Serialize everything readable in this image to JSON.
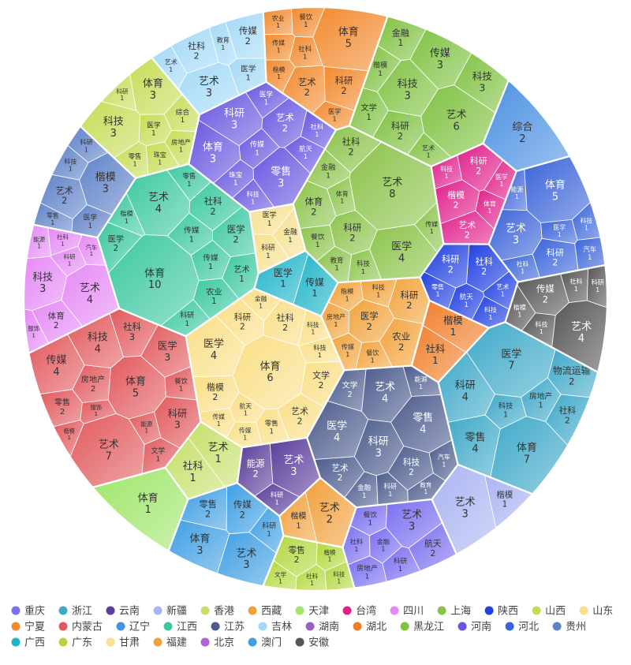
{
  "chart_data": {
    "type": "voronoi_treemap",
    "groups": [
      {
        "name": "重庆",
        "color": "#7a6ff0",
        "children": [
          {
            "name": "餐饮",
            "value": 1
          },
          {
            "name": "科研",
            "value": 1
          },
          {
            "name": "房地产",
            "value": 1
          },
          {
            "name": "航天",
            "value": 2
          },
          {
            "name": "金融",
            "value": 1
          },
          {
            "name": "艺术",
            "value": 3
          },
          {
            "name": "社科",
            "value": 1
          }
        ]
      },
      {
        "name": "浙江",
        "color": "#3fa9c9",
        "children": [
          {
            "name": "体育",
            "value": 7
          },
          {
            "name": "房地产",
            "value": 1
          },
          {
            "name": "科研",
            "value": 4
          },
          {
            "name": "科技",
            "value": 1
          },
          {
            "name": "物流运输",
            "value": 2
          },
          {
            "name": "社科",
            "value": 2
          },
          {
            "name": "零售",
            "value": 4
          },
          {
            "name": "医学",
            "value": 7
          }
        ]
      },
      {
        "name": "云南",
        "color": "#5a3d9a",
        "children": [
          {
            "name": "艺术",
            "value": 3
          },
          {
            "name": "科研",
            "value": 1
          },
          {
            "name": "能源",
            "value": 2
          }
        ]
      },
      {
        "name": "新疆",
        "color": "#aab4f2",
        "children": [
          {
            "name": "艺术",
            "value": 3
          },
          {
            "name": "楷模",
            "value": 1
          }
        ]
      },
      {
        "name": "香港",
        "color": "#c6e06b",
        "children": [
          {
            "name": "社科",
            "value": 1
          },
          {
            "name": "艺术",
            "value": 1
          }
        ]
      },
      {
        "name": "西藏",
        "color": "#f2a03c",
        "children": [
          {
            "name": "艺术",
            "value": 2
          },
          {
            "name": "楷模",
            "value": 1
          }
        ]
      },
      {
        "name": "天津",
        "color": "#9fe66a",
        "children": [
          {
            "name": "体育",
            "value": 1
          }
        ]
      },
      {
        "name": "台湾",
        "color": "#e0208c",
        "children": [
          {
            "name": "科研",
            "value": 2
          },
          {
            "name": "艺术",
            "value": 2
          },
          {
            "name": "体育",
            "value": 1
          },
          {
            "name": "医学",
            "value": 1
          },
          {
            "name": "楷模",
            "value": 2
          },
          {
            "name": "科技",
            "value": 1
          }
        ]
      },
      {
        "name": "四川",
        "color": "#e58af5",
        "children": [
          {
            "name": "汽车",
            "value": 1
          },
          {
            "name": "体育",
            "value": 2
          },
          {
            "name": "科研",
            "value": 1
          },
          {
            "name": "服饰",
            "value": 1
          },
          {
            "name": "能源",
            "value": 1
          },
          {
            "name": "科技",
            "value": 3
          },
          {
            "name": "艺术",
            "value": 4
          },
          {
            "name": "社科",
            "value": 1
          }
        ]
      },
      {
        "name": "上海",
        "color": "#8bc34a",
        "children": [
          {
            "name": "体育",
            "value": 1
          },
          {
            "name": "艺术",
            "value": 8
          },
          {
            "name": "医学",
            "value": 4
          },
          {
            "name": "教育",
            "value": 1
          },
          {
            "name": "金融",
            "value": 1
          },
          {
            "name": "社科",
            "value": 2
          },
          {
            "name": "科技",
            "value": 1
          },
          {
            "name": "餐饮",
            "value": 1
          },
          {
            "name": "传媒",
            "value": 1
          },
          {
            "name": "体育",
            "value": 2
          },
          {
            "name": "科研",
            "value": 2
          }
        ]
      },
      {
        "name": "陕西",
        "color": "#1f3fe0",
        "children": [
          {
            "name": "航天",
            "value": 1
          },
          {
            "name": "社科",
            "value": 2
          },
          {
            "name": "科技",
            "value": 1
          },
          {
            "name": "艺术",
            "value": 1
          },
          {
            "name": "科研",
            "value": 2
          },
          {
            "name": "零售",
            "value": 1
          }
        ]
      },
      {
        "name": "山西",
        "color": "#c5dd55",
        "children": [
          {
            "name": "体育",
            "value": 3
          },
          {
            "name": "零售",
            "value": 1
          },
          {
            "name": "综合",
            "value": 1
          },
          {
            "name": "医学",
            "value": 1
          },
          {
            "name": "房地产",
            "value": 1
          },
          {
            "name": "科研",
            "value": 1
          },
          {
            "name": "科技",
            "value": 3
          },
          {
            "name": "珠宝",
            "value": 1
          }
        ]
      },
      {
        "name": "山东",
        "color": "#fadf86",
        "children": [
          {
            "name": "文学",
            "value": 2
          },
          {
            "name": "医学",
            "value": 4
          },
          {
            "name": "科研",
            "value": 2
          },
          {
            "name": "金融",
            "value": 1
          },
          {
            "name": "零售",
            "value": 1
          },
          {
            "name": "传媒",
            "value": 1
          },
          {
            "name": "科技",
            "value": 1
          },
          {
            "name": "传媒",
            "value": 1
          },
          {
            "name": "艺术",
            "value": 2
          },
          {
            "name": "体育",
            "value": 6
          },
          {
            "name": "航天",
            "value": 1
          },
          {
            "name": "科技",
            "value": 1
          },
          {
            "name": "社科",
            "value": 2
          },
          {
            "name": "楷模",
            "value": 2
          }
        ]
      },
      {
        "name": "宁夏",
        "color": "#f28a2e",
        "children": [
          {
            "name": "医学",
            "value": 1
          },
          {
            "name": "楷模",
            "value": 1
          },
          {
            "name": "科研",
            "value": 2
          },
          {
            "name": "社科",
            "value": 1
          },
          {
            "name": "餐饮",
            "value": 1
          },
          {
            "name": "农业",
            "value": 1
          },
          {
            "name": "艺术",
            "value": 2
          },
          {
            "name": "体育",
            "value": 5
          },
          {
            "name": "传媒",
            "value": 1
          }
        ]
      },
      {
        "name": "内蒙古",
        "color": "#e2595d",
        "children": [
          {
            "name": "文学",
            "value": 1
          },
          {
            "name": "艺术",
            "value": 7
          },
          {
            "name": "房地产",
            "value": 2
          },
          {
            "name": "传媒",
            "value": 4
          },
          {
            "name": "服饰",
            "value": 1
          },
          {
            "name": "楷模",
            "value": 1
          },
          {
            "name": "社科",
            "value": 3
          },
          {
            "name": "科研",
            "value": 3
          },
          {
            "name": "能源",
            "value": 1
          },
          {
            "name": "体育",
            "value": 5
          },
          {
            "name": "医学",
            "value": 3
          },
          {
            "name": "零售",
            "value": 2
          },
          {
            "name": "科技",
            "value": 4
          },
          {
            "name": "餐饮",
            "value": 1
          }
        ]
      },
      {
        "name": "辽宁",
        "color": "#4a90e2",
        "children": [
          {
            "name": "综合",
            "value": 2
          }
        ]
      },
      {
        "name": "江西",
        "color": "#3cc8a0",
        "children": [
          {
            "name": "体育",
            "value": 10
          },
          {
            "name": "社科",
            "value": 2
          },
          {
            "name": "农业",
            "value": 1
          },
          {
            "name": "艺术",
            "value": 4
          },
          {
            "name": "医学",
            "value": 2
          },
          {
            "name": "传媒",
            "value": 1
          },
          {
            "name": "楷模",
            "value": 1
          },
          {
            "name": "零售",
            "value": 1
          },
          {
            "name": "传媒",
            "value": 1
          },
          {
            "name": "艺术",
            "value": 1
          },
          {
            "name": "医学",
            "value": 2
          },
          {
            "name": "科研",
            "value": 1
          }
        ]
      },
      {
        "name": "江苏",
        "color": "#4b5b8c",
        "children": [
          {
            "name": "金融",
            "value": 1
          },
          {
            "name": "科研",
            "value": 3
          },
          {
            "name": "科技",
            "value": 2
          },
          {
            "name": "能源",
            "value": 1
          },
          {
            "name": "艺术",
            "value": 2
          },
          {
            "name": "零售",
            "value": 4
          },
          {
            "name": "汽车",
            "value": 1
          },
          {
            "name": "艺术",
            "value": 4
          },
          {
            "name": "文学",
            "value": 2
          },
          {
            "name": "医学",
            "value": 4
          },
          {
            "name": "教育",
            "value": 1
          },
          {
            "name": "科研",
            "value": 1
          }
        ]
      },
      {
        "name": "吉林",
        "color": "#a3d9f7",
        "children": [
          {
            "name": "社科",
            "value": 2
          },
          {
            "name": "医学",
            "value": 1
          },
          {
            "name": "传媒",
            "value": 2
          },
          {
            "name": "艺术",
            "value": 3
          },
          {
            "name": "艺术",
            "value": 1
          },
          {
            "name": "教育",
            "value": 1
          }
        ]
      },
      {
        "name": "湖南",
        "color": "#9b5fc0"
      },
      {
        "name": "湖北",
        "color": "#f07f2c",
        "children": [
          {
            "name": "楷模",
            "value": 1
          },
          {
            "name": "社科",
            "value": 1
          }
        ]
      },
      {
        "name": "黑龙江",
        "color": "#7fc241",
        "children": [
          {
            "name": "艺术",
            "value": 6
          },
          {
            "name": "文学",
            "value": 1
          },
          {
            "name": "金融",
            "value": 1
          },
          {
            "name": "科技",
            "value": 3
          },
          {
            "name": "科技",
            "value": 3
          },
          {
            "name": "传媒",
            "value": 3
          },
          {
            "name": "科研",
            "value": 2
          },
          {
            "name": "楷模",
            "value": 1
          },
          {
            "name": "艺术",
            "value": 1
          }
        ]
      },
      {
        "name": "河南",
        "color": "#6757e0",
        "children": [
          {
            "name": "零售",
            "value": 3
          },
          {
            "name": "科研",
            "value": 3
          },
          {
            "name": "艺术",
            "value": 2
          },
          {
            "name": "传媒",
            "value": 1
          },
          {
            "name": "体育",
            "value": 3
          },
          {
            "name": "航天",
            "value": 1
          },
          {
            "name": "社科",
            "value": 1
          },
          {
            "name": "科技",
            "value": 1
          },
          {
            "name": "珠宝",
            "value": 1
          },
          {
            "name": "医学",
            "value": 1
          }
        ]
      },
      {
        "name": "河北",
        "color": "#3a64d8",
        "children": [
          {
            "name": "体育",
            "value": 5
          },
          {
            "name": "科技",
            "value": 1
          },
          {
            "name": "医学",
            "value": 1
          },
          {
            "name": "汽车",
            "value": 1
          },
          {
            "name": "社科",
            "value": 1
          },
          {
            "name": "艺术",
            "value": 3
          },
          {
            "name": "能源",
            "value": 1
          },
          {
            "name": "科研",
            "value": 2
          }
        ]
      },
      {
        "name": "贵州",
        "color": "#5f82c8",
        "children": [
          {
            "name": "零售",
            "value": 1
          },
          {
            "name": "艺术",
            "value": 2
          },
          {
            "name": "科研",
            "value": 1
          },
          {
            "name": "医学",
            "value": 1
          },
          {
            "name": "楷模",
            "value": 3
          },
          {
            "name": "科技",
            "value": 1
          }
        ]
      },
      {
        "name": "广西",
        "color": "#1fb4c9",
        "children": [
          {
            "name": "传媒",
            "value": 1
          },
          {
            "name": "医学",
            "value": 1
          }
        ]
      },
      {
        "name": "广东",
        "color": "#b3d83f",
        "children": [
          {
            "name": "楷模",
            "value": 1
          },
          {
            "name": "文学",
            "value": 1
          },
          {
            "name": "社科",
            "value": 1
          },
          {
            "name": "零售",
            "value": 2
          },
          {
            "name": "科技",
            "value": 1
          }
        ]
      },
      {
        "name": "甘肃",
        "color": "#f7e08f",
        "children": [
          {
            "name": "科研",
            "value": 1
          },
          {
            "name": "金融",
            "value": 1
          },
          {
            "name": "医学",
            "value": 1
          }
        ]
      },
      {
        "name": "福建",
        "color": "#f2a23a",
        "children": [
          {
            "name": "科研",
            "value": 2
          },
          {
            "name": "农业",
            "value": 2
          },
          {
            "name": "楷模",
            "value": 1
          },
          {
            "name": "医学",
            "value": 2
          },
          {
            "name": "房地产",
            "value": 1
          },
          {
            "name": "餐饮",
            "value": 1
          },
          {
            "name": "传媒",
            "value": 1
          },
          {
            "name": "科技",
            "value": 1
          }
        ]
      },
      {
        "name": "北京",
        "color": "#b35fd6"
      },
      {
        "name": "澳门",
        "color": "#3f9fe3",
        "children": [
          {
            "name": "零售",
            "value": 2
          },
          {
            "name": "传媒",
            "value": 2
          },
          {
            "name": "科研",
            "value": 1
          },
          {
            "name": "体育",
            "value": 3
          },
          {
            "name": "艺术",
            "value": 3
          }
        ]
      },
      {
        "name": "安徽",
        "color": "#555555",
        "children": [
          {
            "name": "科技",
            "value": 1
          },
          {
            "name": "楷模",
            "value": 1
          },
          {
            "name": "社科",
            "value": 1
          },
          {
            "name": "艺术",
            "value": 4
          },
          {
            "name": "传媒",
            "value": 2
          },
          {
            "name": "科研",
            "value": 1
          }
        ]
      }
    ]
  }
}
